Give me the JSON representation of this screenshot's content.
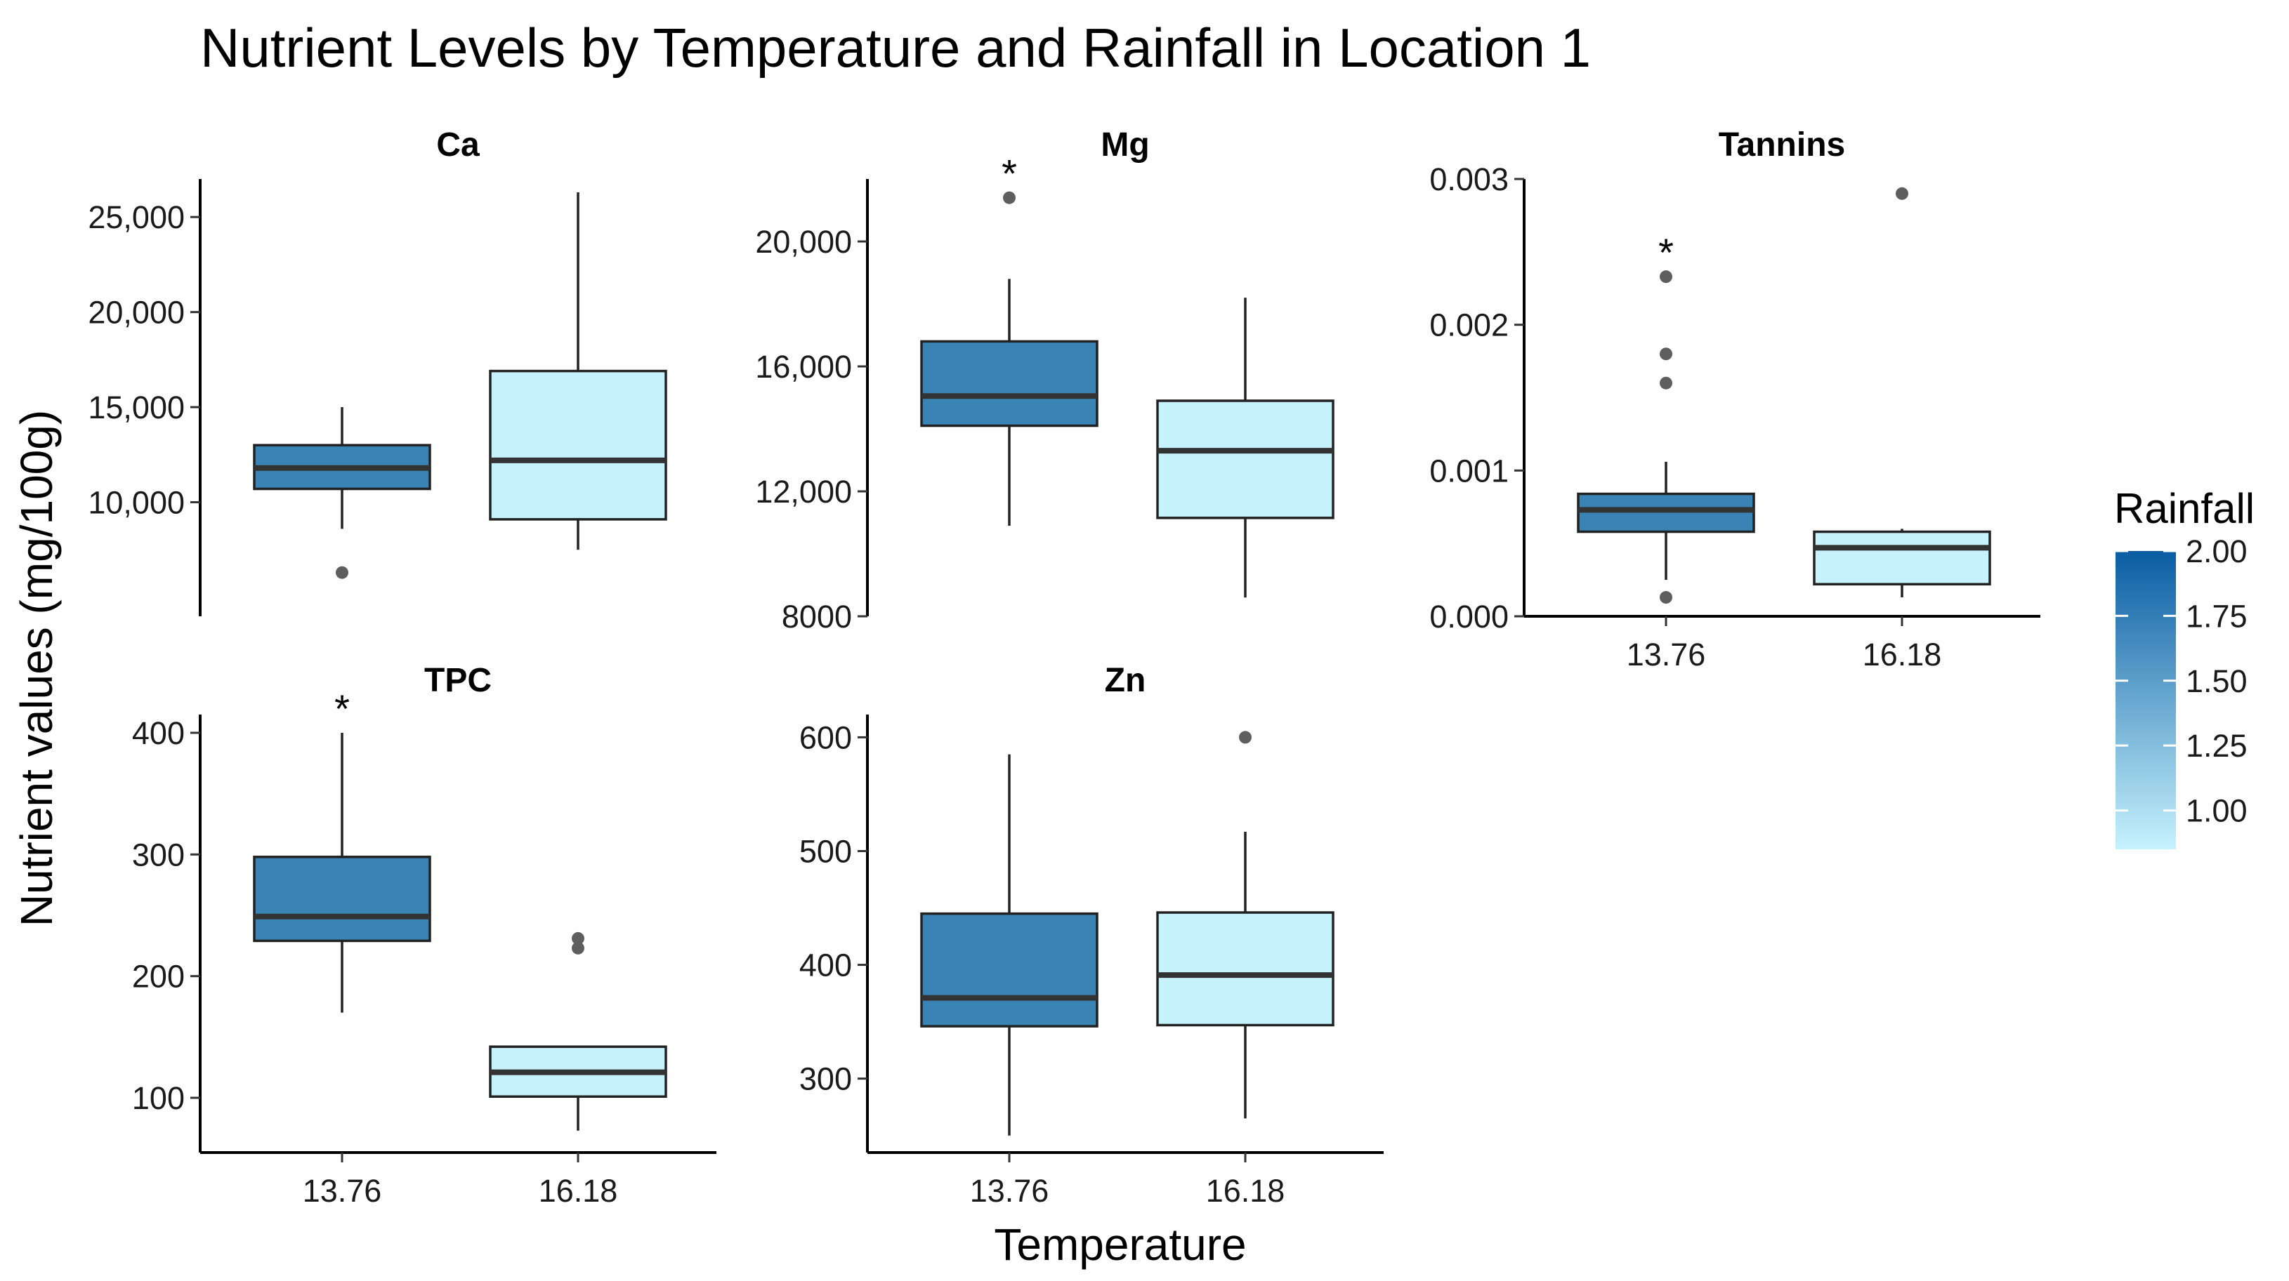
{
  "chart_data": {
    "type": "boxplot",
    "title": "Nutrient Levels by Temperature and Rainfall in Location 1",
    "xlabel": "Temperature",
    "ylabel": "Nutrient values (mg/100g)",
    "categories": [
      "13.76",
      "16.18"
    ],
    "legend": {
      "title": "Rainfall",
      "range": [
        0.85,
        2.0
      ],
      "ticks": [
        "1.00",
        "1.25",
        "1.50",
        "1.75",
        "2.00"
      ],
      "tick_values": [
        1.0,
        1.25,
        1.5,
        1.75,
        2.0
      ],
      "placement": "right",
      "low_color": "#c6f2fd",
      "high_color": "#0a5da3"
    },
    "colors": {
      "box_13_76": "#3a84b5",
      "box_16_18": "#c6f2fd",
      "outline": "#222222",
      "median": "#333333",
      "outlier": "#5e5e5e"
    },
    "panels": [
      {
        "name": "Ca",
        "ylim": [
          4000,
          27000
        ],
        "ticks": [
          10000,
          15000,
          20000,
          25000
        ],
        "tick_labels": [
          "10,000",
          "15,000",
          "20,000",
          "25,000"
        ],
        "show_x_axis": false,
        "boxes": [
          {
            "category": "13.76",
            "rainfall": 1.5,
            "q1": 10700,
            "median": 11800,
            "q3": 13000,
            "whisker_low": 8600,
            "whisker_high": 15000,
            "outliers": [
              6300
            ],
            "star": false
          },
          {
            "category": "16.18",
            "rainfall": 0.9,
            "q1": 9100,
            "median": 12200,
            "q3": 16900,
            "whisker_low": 7500,
            "whisker_high": 26300,
            "outliers": [],
            "star": false
          }
        ]
      },
      {
        "name": "Mg",
        "ylim": [
          8000,
          22000
        ],
        "ticks": [
          8000,
          12000,
          16000,
          20000
        ],
        "tick_labels": [
          "8000",
          "12,000",
          "16,000",
          "20,000"
        ],
        "show_x_axis": false,
        "boxes": [
          {
            "category": "13.76",
            "rainfall": 1.5,
            "q1": 14100,
            "median": 15050,
            "q3": 16800,
            "whisker_low": 10900,
            "whisker_high": 18800,
            "outliers": [
              21400
            ],
            "star": true
          },
          {
            "category": "16.18",
            "rainfall": 0.9,
            "q1": 11150,
            "median": 13300,
            "q3": 14900,
            "whisker_low": 8600,
            "whisker_high": 18200,
            "outliers": [],
            "star": false
          }
        ]
      },
      {
        "name": "Tannins",
        "ylim": [
          0,
          0.003
        ],
        "ticks": [
          0,
          0.001,
          0.002,
          0.003
        ],
        "tick_labels": [
          "0.000",
          "0.001",
          "0.002",
          "0.003"
        ],
        "show_x_axis": true,
        "boxes": [
          {
            "category": "13.76",
            "rainfall": 1.5,
            "q1": 0.00058,
            "median": 0.00073,
            "q3": 0.00084,
            "whisker_low": 0.00025,
            "whisker_high": 0.00106,
            "outliers": [
              0.00013,
              0.0016,
              0.0018,
              0.00233
            ],
            "star": true
          },
          {
            "category": "16.18",
            "rainfall": 0.9,
            "q1": 0.00022,
            "median": 0.00047,
            "q3": 0.00058,
            "whisker_low": 0.00013,
            "whisker_high": 0.0006,
            "outliers": [
              0.0029
            ],
            "star": false
          }
        ]
      },
      {
        "name": "TPC",
        "ylim": [
          55,
          415
        ],
        "ticks": [
          100,
          200,
          300,
          400
        ],
        "tick_labels": [
          "100",
          "200",
          "300",
          "400"
        ],
        "show_x_axis": true,
        "boxes": [
          {
            "category": "13.76",
            "rainfall": 1.5,
            "q1": 229,
            "median": 249,
            "q3": 298,
            "whisker_low": 170,
            "whisker_high": 400,
            "outliers": [],
            "star": true
          },
          {
            "category": "16.18",
            "rainfall": 0.9,
            "q1": 101,
            "median": 121,
            "q3": 142,
            "whisker_low": 73,
            "whisker_high": 142,
            "outliers": [
              223,
              231
            ],
            "star": false
          }
        ]
      },
      {
        "name": "Zn",
        "ylim": [
          235,
          620
        ],
        "ticks": [
          300,
          400,
          500,
          600
        ],
        "tick_labels": [
          "300",
          "400",
          "500",
          "600"
        ],
        "show_x_axis": true,
        "boxes": [
          {
            "category": "13.76",
            "rainfall": 1.5,
            "q1": 346,
            "median": 371,
            "q3": 445,
            "whisker_low": 250,
            "whisker_high": 585,
            "outliers": [],
            "star": false
          },
          {
            "category": "16.18",
            "rainfall": 0.9,
            "q1": 347,
            "median": 391,
            "q3": 446,
            "whisker_low": 265,
            "whisker_high": 517,
            "outliers": [
              600
            ],
            "star": false
          }
        ]
      }
    ]
  }
}
